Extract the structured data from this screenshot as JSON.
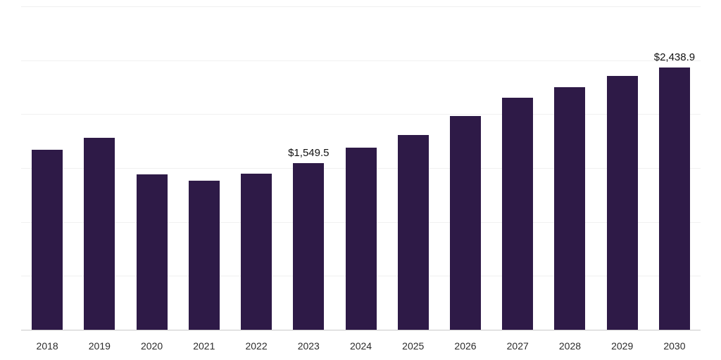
{
  "chart_data": {
    "type": "bar",
    "title": "",
    "xlabel": "",
    "ylabel": "",
    "categories": [
      "2018",
      "2019",
      "2020",
      "2021",
      "2022",
      "2023",
      "2024",
      "2025",
      "2026",
      "2027",
      "2028",
      "2029",
      "2030"
    ],
    "values": [
      1675,
      1790,
      1450,
      1390,
      1455,
      1549.5,
      1695,
      1815,
      1990,
      2160,
      2255,
      2360,
      2438.9
    ],
    "ylim": [
      0,
      3000
    ],
    "gridline_step": 500,
    "grid": "horizontal-faint",
    "legend": "none",
    "annotations": [
      {
        "category": "2023",
        "text": "$1,549.5"
      },
      {
        "category": "2030",
        "text": "$2,438.9"
      }
    ],
    "colors": {
      "bar": "#2e1a47",
      "gridline": "#f0f0f0",
      "axis_line": "#c9c9c9",
      "annotation_text": "#111111",
      "axis_label_text": "#2b2b2b"
    }
  }
}
